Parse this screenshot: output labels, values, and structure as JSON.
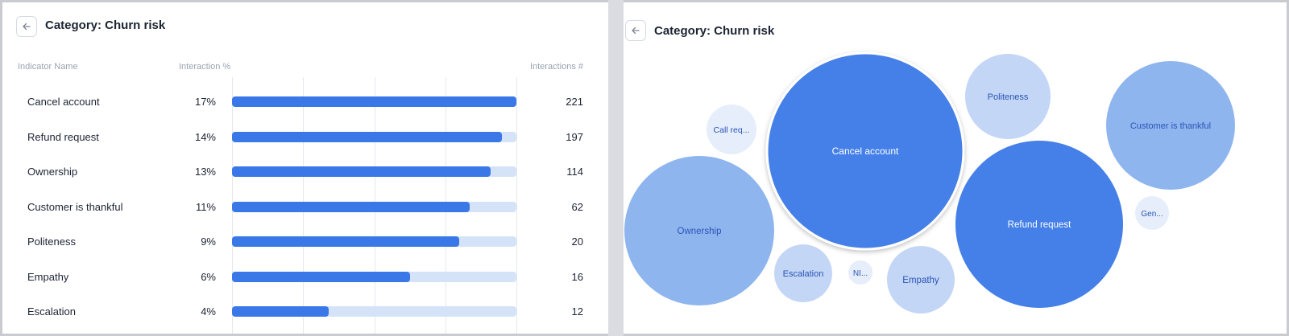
{
  "left": {
    "title": "Category: Churn risk",
    "headers": {
      "name": "Indicator Name",
      "pct": "Interaction %",
      "count": "Interactions #"
    }
  },
  "right": {
    "title": "Category: Churn risk"
  },
  "colors": {
    "bar_fill": "#3b78e7",
    "bar_track": "#d5e3f8",
    "bubble_dark": "#4480e8",
    "bubble_mid": "#8fb5ef",
    "bubble_light": "#c3d6f6",
    "bubble_pale": "#e6eefb"
  },
  "chart_data": [
    {
      "type": "bar",
      "orientation": "horizontal",
      "categories": [
        "Cancel account",
        "Refund request",
        "Ownership",
        "Customer is thankful",
        "Politeness",
        "Empathy",
        "Escalation"
      ],
      "interaction_pct_labels": [
        "17%",
        "14%",
        "13%",
        "11%",
        "9%",
        "6%",
        "4%"
      ],
      "bar_fill_fraction": [
        1.0,
        0.95,
        0.91,
        0.835,
        0.8,
        0.625,
        0.34
      ],
      "interactions": [
        221,
        197,
        114,
        62,
        20,
        16,
        12
      ]
    },
    {
      "type": "bubble",
      "bubbles": [
        {
          "label": "Cancel account",
          "shade": "dark",
          "highlight": true
        },
        {
          "label": "Refund request",
          "shade": "dark"
        },
        {
          "label": "Ownership",
          "shade": "mid"
        },
        {
          "label": "Customer is thankful",
          "shade": "mid"
        },
        {
          "label": "Politeness",
          "shade": "light"
        },
        {
          "label": "Empathy",
          "shade": "light"
        },
        {
          "label": "Escalation",
          "shade": "light"
        },
        {
          "label": "Call req...",
          "shade": "pale"
        },
        {
          "label": "Gen...",
          "shade": "pale"
        },
        {
          "label": "NI...",
          "shade": "pale"
        }
      ]
    }
  ]
}
